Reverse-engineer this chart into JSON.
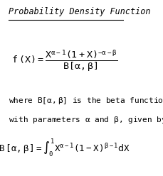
{
  "title": "Probability Density Function",
  "background_color": "#ffffff",
  "text_color": "#000000",
  "figsize": [
    2.29,
    2.48
  ],
  "dpi": 100
}
